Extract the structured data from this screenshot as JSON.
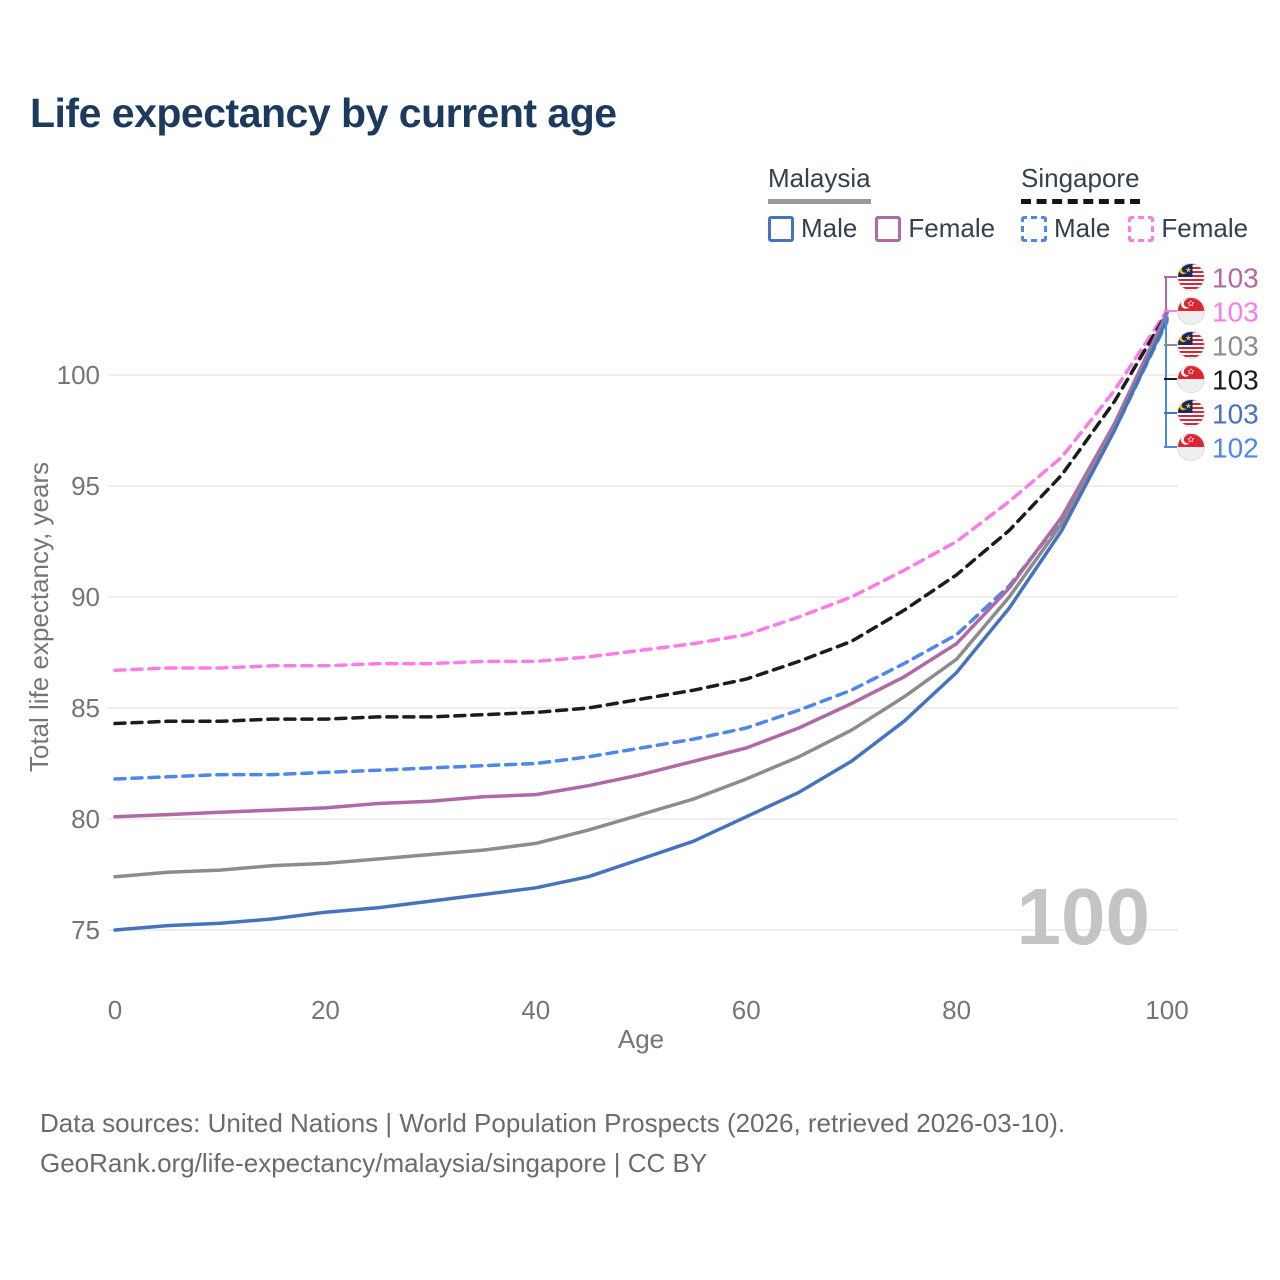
{
  "title": "Life expectancy by current age",
  "legend": {
    "groups": [
      {
        "name": "Malaysia",
        "line_style": "solid",
        "underline_color": "#9a9a9a",
        "items": [
          {
            "label": "Male",
            "color": "#4673be",
            "dashed": false
          },
          {
            "label": "Female",
            "color": "#af69a5",
            "dashed": false
          }
        ]
      },
      {
        "name": "Singapore",
        "line_style": "dashed",
        "underline_color": "#161616",
        "items": [
          {
            "label": "Male",
            "color": "#4e86ec",
            "dashed": true
          },
          {
            "label": "Female",
            "color": "#fb7ce8",
            "dashed": true
          }
        ]
      }
    ]
  },
  "watermark": "100",
  "footer": {
    "line1": "Data sources: United Nations | World Population Prospects (2026, retrieved 2026-03-10).",
    "line2": "GeoRank.org/life-expectancy/malaysia/singapore | CC BY"
  },
  "chart_data": {
    "type": "line",
    "title": "Life expectancy by current age",
    "xlabel": "Age",
    "ylabel": "Total life expectancy, years",
    "xlim": [
      0,
      100
    ],
    "ylim": [
      75,
      100
    ],
    "xticks": [
      0,
      20,
      40,
      60,
      80,
      100
    ],
    "yticks": [
      75,
      80,
      85,
      90,
      95,
      100
    ],
    "grid": "horizontal",
    "legend_position": "top-right",
    "x": [
      0,
      5,
      10,
      15,
      20,
      25,
      30,
      35,
      40,
      45,
      50,
      55,
      60,
      65,
      70,
      75,
      80,
      85,
      90,
      95,
      100
    ],
    "series": [
      {
        "name": "Singapore Female",
        "country": "Singapore",
        "sex": "Female",
        "color": "#fb7ce8",
        "dash": "10,7",
        "values": [
          86.7,
          86.8,
          86.8,
          86.9,
          86.9,
          87.0,
          87.0,
          87.1,
          87.1,
          87.3,
          87.6,
          87.9,
          88.3,
          89.1,
          90.0,
          91.2,
          92.5,
          94.3,
          96.3,
          99.3,
          102.9
        ]
      },
      {
        "name": "Singapore",
        "country": "Singapore",
        "sex": "Both",
        "color": "#1c1c1c",
        "dash": "10,7",
        "values": [
          84.3,
          84.4,
          84.4,
          84.5,
          84.5,
          84.6,
          84.6,
          84.7,
          84.8,
          85.0,
          85.4,
          85.8,
          86.3,
          87.1,
          88.0,
          89.4,
          91.0,
          93.0,
          95.5,
          98.8,
          102.8
        ]
      },
      {
        "name": "Singapore Male",
        "country": "Singapore",
        "sex": "Male",
        "color": "#4e86ec",
        "dash": "10,7",
        "values": [
          81.8,
          81.9,
          82.0,
          82.0,
          82.1,
          82.2,
          82.3,
          82.4,
          82.5,
          82.8,
          83.2,
          83.6,
          84.1,
          84.9,
          85.8,
          87.0,
          88.3,
          90.5,
          93.5,
          97.5,
          102.4
        ]
      },
      {
        "name": "Malaysia Female",
        "country": "Malaysia",
        "sex": "Female",
        "color": "#af69a5",
        "dash": null,
        "values": [
          80.1,
          80.2,
          80.3,
          80.4,
          80.5,
          80.7,
          80.8,
          81.0,
          81.1,
          81.5,
          82.0,
          82.6,
          83.2,
          84.1,
          85.2,
          86.4,
          87.9,
          90.4,
          93.6,
          97.8,
          102.8
        ]
      },
      {
        "name": "Malaysia",
        "country": "Malaysia",
        "sex": "Both",
        "color": "#8c8c8c",
        "dash": null,
        "values": [
          77.4,
          77.6,
          77.7,
          77.9,
          78.0,
          78.2,
          78.4,
          78.6,
          78.9,
          79.5,
          80.2,
          80.9,
          81.8,
          82.8,
          84.0,
          85.5,
          87.2,
          90.0,
          93.3,
          97.6,
          102.6
        ]
      },
      {
        "name": "Malaysia Male",
        "country": "Malaysia",
        "sex": "Male",
        "color": "#4673be",
        "dash": null,
        "values": [
          75.0,
          75.2,
          75.3,
          75.5,
          75.8,
          76.0,
          76.3,
          76.6,
          76.9,
          77.4,
          78.2,
          79.0,
          80.1,
          81.2,
          82.6,
          84.4,
          86.6,
          89.5,
          93.0,
          97.5,
          102.5
        ]
      }
    ],
    "end_labels": [
      {
        "series": "Malaysia Female",
        "flag": "malaysia",
        "value": "103",
        "color": "#af69a5"
      },
      {
        "series": "Singapore Female",
        "flag": "singapore",
        "value": "103",
        "color": "#fb7ce8"
      },
      {
        "series": "Malaysia",
        "flag": "malaysia",
        "value": "103",
        "color": "#8c8c8c"
      },
      {
        "series": "Singapore",
        "flag": "singapore",
        "value": "103",
        "color": "#1c1c1c"
      },
      {
        "series": "Malaysia Male",
        "flag": "malaysia",
        "value": "103",
        "color": "#4673be"
      },
      {
        "series": "Singapore Male",
        "flag": "singapore",
        "value": "102",
        "color": "#4e86ec"
      }
    ]
  }
}
